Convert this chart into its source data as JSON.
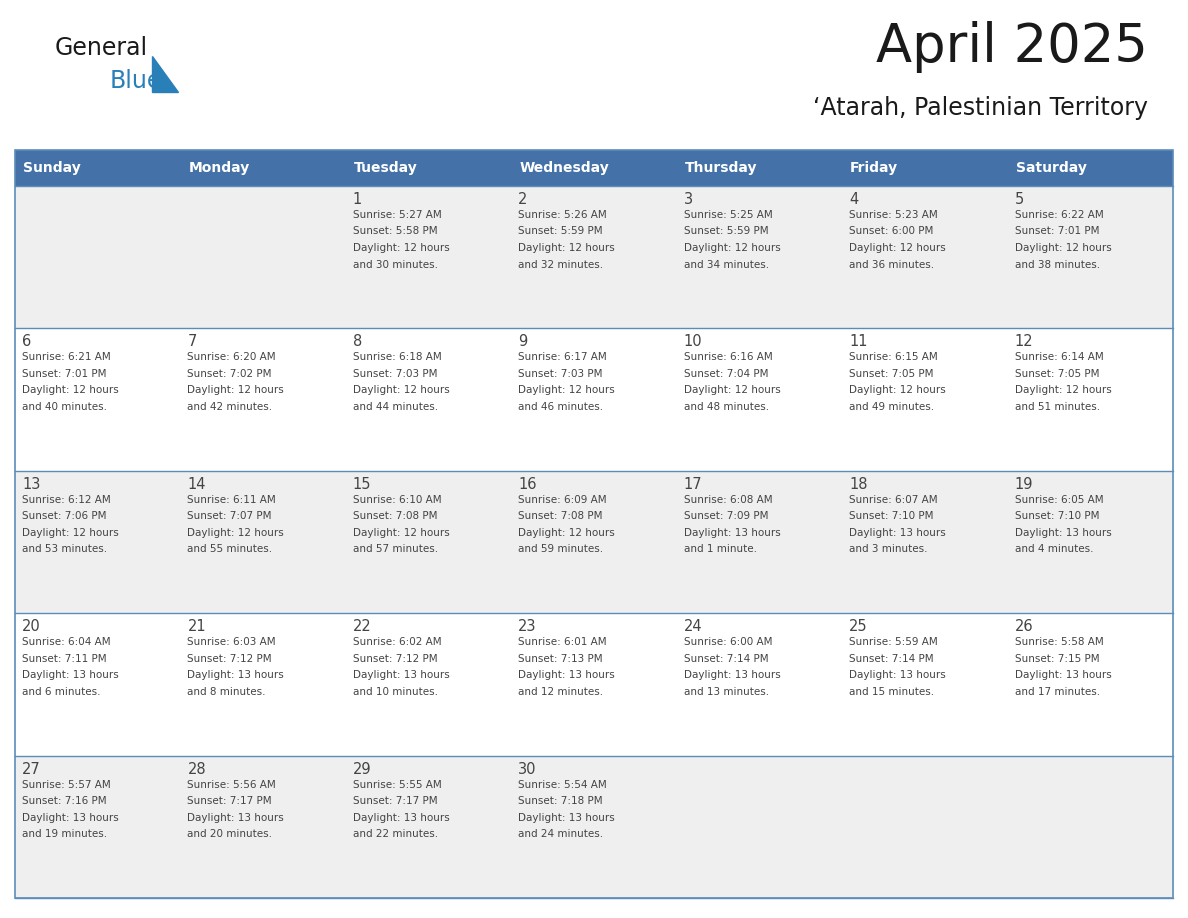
{
  "title": "April 2025",
  "subtitle": "‘Atarah, Palestinian Territory",
  "header_bg": "#4472a8",
  "header_text_color": "#ffffff",
  "cell_bg_odd": "#efefef",
  "cell_bg_even": "#ffffff",
  "text_color": "#444444",
  "line_color": "#5b8db8",
  "days_of_week": [
    "Sunday",
    "Monday",
    "Tuesday",
    "Wednesday",
    "Thursday",
    "Friday",
    "Saturday"
  ],
  "logo_general_color": "#1a1a1a",
  "logo_blue_color": "#2980b9",
  "logo_triangle_color": "#2980b9",
  "weeks": [
    [
      {
        "day": "",
        "info": ""
      },
      {
        "day": "",
        "info": ""
      },
      {
        "day": "1",
        "info": "Sunrise: 5:27 AM\nSunset: 5:58 PM\nDaylight: 12 hours\nand 30 minutes."
      },
      {
        "day": "2",
        "info": "Sunrise: 5:26 AM\nSunset: 5:59 PM\nDaylight: 12 hours\nand 32 minutes."
      },
      {
        "day": "3",
        "info": "Sunrise: 5:25 AM\nSunset: 5:59 PM\nDaylight: 12 hours\nand 34 minutes."
      },
      {
        "day": "4",
        "info": "Sunrise: 5:23 AM\nSunset: 6:00 PM\nDaylight: 12 hours\nand 36 minutes."
      },
      {
        "day": "5",
        "info": "Sunrise: 6:22 AM\nSunset: 7:01 PM\nDaylight: 12 hours\nand 38 minutes."
      }
    ],
    [
      {
        "day": "6",
        "info": "Sunrise: 6:21 AM\nSunset: 7:01 PM\nDaylight: 12 hours\nand 40 minutes."
      },
      {
        "day": "7",
        "info": "Sunrise: 6:20 AM\nSunset: 7:02 PM\nDaylight: 12 hours\nand 42 minutes."
      },
      {
        "day": "8",
        "info": "Sunrise: 6:18 AM\nSunset: 7:03 PM\nDaylight: 12 hours\nand 44 minutes."
      },
      {
        "day": "9",
        "info": "Sunrise: 6:17 AM\nSunset: 7:03 PM\nDaylight: 12 hours\nand 46 minutes."
      },
      {
        "day": "10",
        "info": "Sunrise: 6:16 AM\nSunset: 7:04 PM\nDaylight: 12 hours\nand 48 minutes."
      },
      {
        "day": "11",
        "info": "Sunrise: 6:15 AM\nSunset: 7:05 PM\nDaylight: 12 hours\nand 49 minutes."
      },
      {
        "day": "12",
        "info": "Sunrise: 6:14 AM\nSunset: 7:05 PM\nDaylight: 12 hours\nand 51 minutes."
      }
    ],
    [
      {
        "day": "13",
        "info": "Sunrise: 6:12 AM\nSunset: 7:06 PM\nDaylight: 12 hours\nand 53 minutes."
      },
      {
        "day": "14",
        "info": "Sunrise: 6:11 AM\nSunset: 7:07 PM\nDaylight: 12 hours\nand 55 minutes."
      },
      {
        "day": "15",
        "info": "Sunrise: 6:10 AM\nSunset: 7:08 PM\nDaylight: 12 hours\nand 57 minutes."
      },
      {
        "day": "16",
        "info": "Sunrise: 6:09 AM\nSunset: 7:08 PM\nDaylight: 12 hours\nand 59 minutes."
      },
      {
        "day": "17",
        "info": "Sunrise: 6:08 AM\nSunset: 7:09 PM\nDaylight: 13 hours\nand 1 minute."
      },
      {
        "day": "18",
        "info": "Sunrise: 6:07 AM\nSunset: 7:10 PM\nDaylight: 13 hours\nand 3 minutes."
      },
      {
        "day": "19",
        "info": "Sunrise: 6:05 AM\nSunset: 7:10 PM\nDaylight: 13 hours\nand 4 minutes."
      }
    ],
    [
      {
        "day": "20",
        "info": "Sunrise: 6:04 AM\nSunset: 7:11 PM\nDaylight: 13 hours\nand 6 minutes."
      },
      {
        "day": "21",
        "info": "Sunrise: 6:03 AM\nSunset: 7:12 PM\nDaylight: 13 hours\nand 8 minutes."
      },
      {
        "day": "22",
        "info": "Sunrise: 6:02 AM\nSunset: 7:12 PM\nDaylight: 13 hours\nand 10 minutes."
      },
      {
        "day": "23",
        "info": "Sunrise: 6:01 AM\nSunset: 7:13 PM\nDaylight: 13 hours\nand 12 minutes."
      },
      {
        "day": "24",
        "info": "Sunrise: 6:00 AM\nSunset: 7:14 PM\nDaylight: 13 hours\nand 13 minutes."
      },
      {
        "day": "25",
        "info": "Sunrise: 5:59 AM\nSunset: 7:14 PM\nDaylight: 13 hours\nand 15 minutes."
      },
      {
        "day": "26",
        "info": "Sunrise: 5:58 AM\nSunset: 7:15 PM\nDaylight: 13 hours\nand 17 minutes."
      }
    ],
    [
      {
        "day": "27",
        "info": "Sunrise: 5:57 AM\nSunset: 7:16 PM\nDaylight: 13 hours\nand 19 minutes."
      },
      {
        "day": "28",
        "info": "Sunrise: 5:56 AM\nSunset: 7:17 PM\nDaylight: 13 hours\nand 20 minutes."
      },
      {
        "day": "29",
        "info": "Sunrise: 5:55 AM\nSunset: 7:17 PM\nDaylight: 13 hours\nand 22 minutes."
      },
      {
        "day": "30",
        "info": "Sunrise: 5:54 AM\nSunset: 7:18 PM\nDaylight: 13 hours\nand 24 minutes."
      },
      {
        "day": "",
        "info": ""
      },
      {
        "day": "",
        "info": ""
      },
      {
        "day": "",
        "info": ""
      }
    ]
  ]
}
